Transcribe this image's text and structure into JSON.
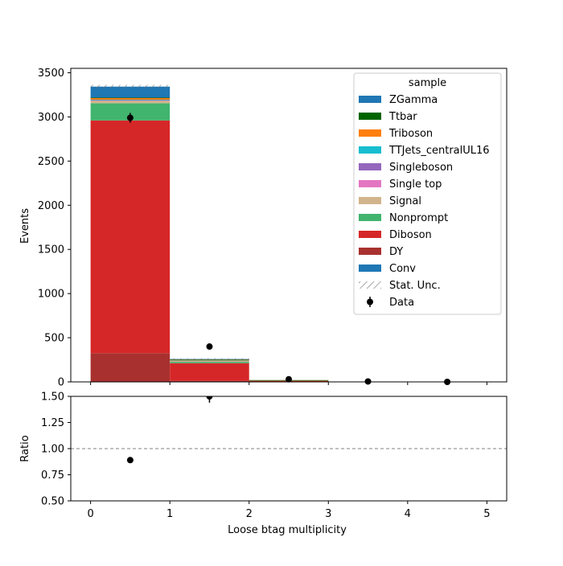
{
  "chart_data": {
    "type": "bar",
    "stacked": true,
    "x_edges": [
      0,
      1,
      2,
      3,
      4,
      5
    ],
    "xlim": [
      -0.25,
      5.25
    ],
    "xticks": [
      "0",
      "1",
      "2",
      "3",
      "4",
      "5"
    ],
    "xlabel": "Loose btag multiplicity",
    "main": {
      "ylabel": "Events",
      "ylim": [
        0,
        3550
      ],
      "yticks": [
        "0",
        "500",
        "1000",
        "1500",
        "2000",
        "2500",
        "3000",
        "3500"
      ],
      "series": [
        {
          "name": "DY",
          "color": "#a8312f",
          "values": [
            325,
            12,
            3,
            0,
            0
          ]
        },
        {
          "name": "Diboson",
          "color": "#d62728",
          "values": [
            2635,
            200,
            12,
            2,
            0
          ]
        },
        {
          "name": "Nonprompt",
          "color": "#41b46e",
          "values": [
            195,
            15,
            2,
            0,
            0
          ]
        },
        {
          "name": "Signal",
          "color": "#d2b48c",
          "values": [
            30,
            12,
            1,
            0,
            0
          ]
        },
        {
          "name": "Single top",
          "color": "#e377c2",
          "values": [
            3,
            2,
            0,
            0,
            0
          ]
        },
        {
          "name": "Singleboson",
          "color": "#9467bd",
          "values": [
            3,
            0,
            0,
            0,
            0
          ]
        },
        {
          "name": "TTJets_centralUL16",
          "color": "#17becf",
          "values": [
            4,
            1,
            0,
            0,
            0
          ]
        },
        {
          "name": "Triboson",
          "color": "#ff7f0e",
          "values": [
            20,
            10,
            1,
            0,
            0
          ]
        },
        {
          "name": "Ttbar",
          "color": "#006400",
          "values": [
            3,
            2,
            1,
            1,
            0
          ]
        },
        {
          "name": "ZGamma",
          "color": "#1f77b4",
          "values": [
            125,
            5,
            0,
            0,
            0
          ]
        }
      ],
      "stat_unc": [
        20,
        8,
        2,
        1,
        0
      ],
      "data": {
        "name": "Data",
        "x": [
          0.5,
          1.5,
          2.5,
          3.5,
          4.5
        ],
        "y": [
          2990,
          400,
          30,
          5,
          0
        ],
        "yerr": [
          55,
          20,
          5,
          2,
          1
        ]
      }
    },
    "ratio": {
      "ylabel": "Ratio",
      "ylim": [
        0.5,
        1.5
      ],
      "yticks": [
        "0.50",
        "0.75",
        "1.00",
        "1.25",
        "1.50"
      ],
      "reference_line": 1.0,
      "points": [
        {
          "x": 0.5,
          "y": 0.89
        }
      ],
      "errorbar_tops": [
        {
          "x": 1.5,
          "y_low": 1.44,
          "y_high": 1.5
        }
      ]
    },
    "legend": {
      "title": "sample",
      "placement": "upper right",
      "entries": [
        {
          "label": "ZGamma",
          "color": "#1f77b4",
          "kind": "patch"
        },
        {
          "label": "Ttbar",
          "color": "#006400",
          "kind": "patch"
        },
        {
          "label": "Triboson",
          "color": "#ff7f0e",
          "kind": "patch"
        },
        {
          "label": "TTJets_centralUL16",
          "color": "#17becf",
          "kind": "patch"
        },
        {
          "label": "Singleboson",
          "color": "#9467bd",
          "kind": "patch"
        },
        {
          "label": "Single top",
          "color": "#e377c2",
          "kind": "patch"
        },
        {
          "label": "Signal",
          "color": "#d2b48c",
          "kind": "patch"
        },
        {
          "label": "Nonprompt",
          "color": "#41b46e",
          "kind": "patch"
        },
        {
          "label": "Diboson",
          "color": "#d62728",
          "kind": "patch"
        },
        {
          "label": "DY",
          "color": "#a8312f",
          "kind": "patch"
        },
        {
          "label": "Conv",
          "color": "#1f77b4",
          "kind": "patch"
        },
        {
          "label": "Stat. Unc.",
          "color": "#888888",
          "kind": "hatch"
        },
        {
          "label": "Data",
          "color": "#000000",
          "kind": "marker"
        }
      ]
    }
  }
}
